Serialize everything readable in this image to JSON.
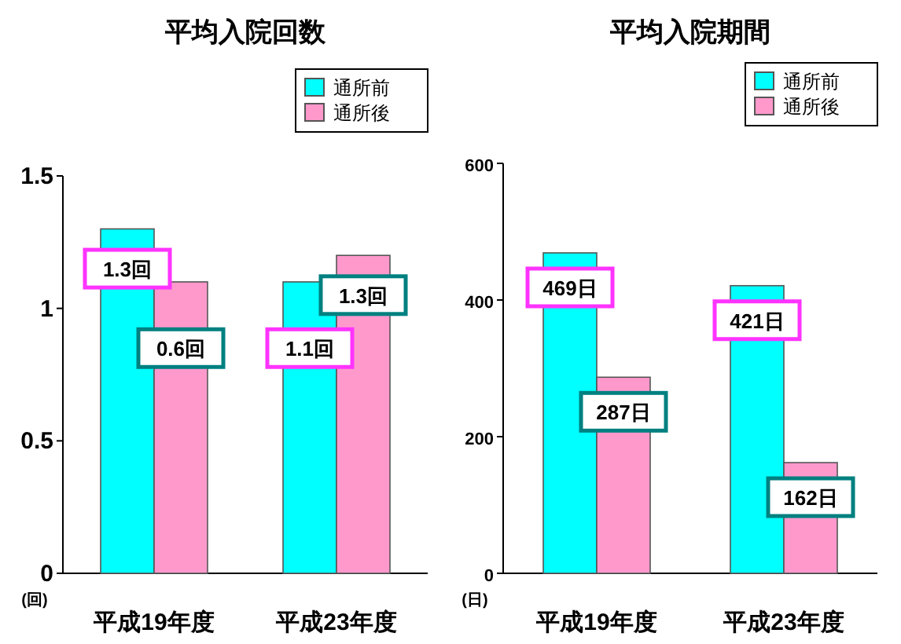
{
  "chart_data": [
    {
      "type": "bar",
      "title": "平均入院回数",
      "ylabel": "(回)",
      "categories": [
        "平成19年度",
        "平成23年度"
      ],
      "ylim": [
        0,
        1.5
      ],
      "yticks": [
        0,
        0.5,
        1,
        1.5
      ],
      "legend": "top right",
      "grid": false,
      "series": [
        {
          "name": "通所前",
          "color": "#00ffff",
          "values": [
            1.3,
            1.1
          ]
        },
        {
          "name": "通所後",
          "color": "#ff99cc",
          "values": [
            1.1,
            1.2
          ]
        }
      ],
      "annotations": [
        {
          "text": "1.3回",
          "x": "平成19年度",
          "y": 1.15
        },
        {
          "text": "0.6回",
          "x": "平成19年度",
          "y": 0.85
        },
        {
          "text": "1.1回",
          "x": "平成23年度",
          "y": 0.85
        },
        {
          "text": "1.3回",
          "x": "平成23年度",
          "y": 1.05
        }
      ]
    },
    {
      "type": "bar",
      "title": "平均入院期間",
      "ylabel": "(日)",
      "categories": [
        "平成19年度",
        "平成23年度"
      ],
      "ylim": [
        0,
        600
      ],
      "yticks": [
        0,
        200,
        400,
        600
      ],
      "legend": "top right",
      "grid": false,
      "series": [
        {
          "name": "通所前",
          "color": "#00ffff",
          "values": [
            469,
            421
          ],
          "value_labels": [
            "469日",
            "421日"
          ]
        },
        {
          "name": "通所後",
          "color": "#ff99cc",
          "values": [
            287,
            162
          ],
          "value_labels": [
            "287日",
            "162日"
          ]
        }
      ]
    }
  ]
}
